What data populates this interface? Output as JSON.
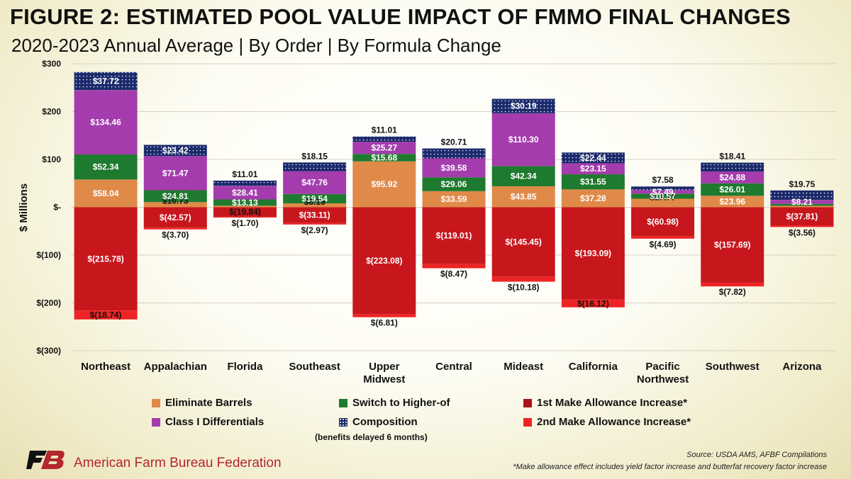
{
  "header": {
    "title": "FIGURE 2: ESTIMATED POOL VALUE IMPACT OF FMMO FINAL CHANGES",
    "subtitle": "2020-2023 Annual Average | By Order | By Formula Change"
  },
  "chart_data": {
    "type": "bar",
    "stacked": true,
    "title": "FIGURE 2: ESTIMATED POOL VALUE IMPACT OF FMMO FINAL CHANGES",
    "subtitle": "2020-2023 Annual Average | By Order | By Formula Change",
    "ylabel": "$ Millions",
    "ylim": [
      -300,
      300
    ],
    "yticks": [
      300,
      200,
      100,
      0,
      -100,
      -200,
      -300
    ],
    "ytick_labels": [
      "$300",
      "$200",
      "$100",
      "$-",
      "$(100)",
      "$(200)",
      "$(300)"
    ],
    "categories": [
      "Northeast",
      "Appalachian",
      "Florida",
      "Southeast",
      "Upper Midwest",
      "Central",
      "Mideast",
      "California",
      "Pacific Northwest",
      "Southwest",
      "Arizona"
    ],
    "category_lines": [
      [
        "Northeast"
      ],
      [
        "Appalachian"
      ],
      [
        "Florida"
      ],
      [
        "Southeast"
      ],
      [
        "Upper",
        "Midwest"
      ],
      [
        "Central"
      ],
      [
        "Mideast"
      ],
      [
        "California"
      ],
      [
        "Pacific",
        "Northwest"
      ],
      [
        "Southwest"
      ],
      [
        "Arizona"
      ]
    ],
    "series": [
      {
        "name": "Eliminate Barrels",
        "key": "barrels",
        "color": "#e08a4a",
        "values": [
          58.04,
          10.73,
          3.16,
          8.19,
          95.92,
          33.59,
          43.85,
          37.28,
          17.77,
          23.96,
          3.1
        ],
        "labels": [
          "$58.04",
          "$10.73",
          "",
          "$8.19",
          "$95.92",
          "$33.59",
          "$43.85",
          "$37.28",
          "$17.77",
          "$23.96",
          ""
        ]
      },
      {
        "name": "Switch to Higher-of",
        "key": "higher",
        "color": "#1e7a2e",
        "values": [
          52.34,
          24.81,
          13.13,
          19.54,
          15.68,
          29.06,
          42.34,
          31.55,
          10.57,
          26.01,
          4.06
        ],
        "labels": [
          "$52.34",
          "$24.81",
          "$13.13",
          "$19.54",
          "$15.68",
          "$29.06",
          "$42.34",
          "$31.55",
          "$10.57",
          "$26.01",
          ""
        ]
      },
      {
        "name": "Class I Differentials",
        "key": "classI",
        "color": "#a43cad",
        "values": [
          134.46,
          71.47,
          28.41,
          47.76,
          25.27,
          39.58,
          110.3,
          23.15,
          7.49,
          24.88,
          8.21
        ],
        "labels": [
          "$134.46",
          "$71.47",
          "$28.41",
          "$47.76",
          "$25.27",
          "$39.58",
          "$110.30",
          "$23.15",
          "$7.49",
          "$24.88",
          "$8.21"
        ]
      },
      {
        "name": "Composition",
        "key": "composition",
        "color": "#1b2a6b",
        "values": [
          37.72,
          23.42,
          11.01,
          18.15,
          11.01,
          20.71,
          30.19,
          22.44,
          7.58,
          18.41,
          19.75
        ],
        "labels": [
          "$37.72",
          "$23.42",
          "$11.01",
          "$18.15",
          "$11.01",
          "$20.71",
          "$30.19",
          "$22.44",
          "$7.58",
          "$18.41",
          "$19.75"
        ]
      },
      {
        "name": "1st Make Allowance Increase*",
        "key": "ma1",
        "color": "#c8161d",
        "values": [
          -215.78,
          -42.57,
          -19.84,
          -33.11,
          -223.08,
          -119.01,
          -145.45,
          -193.09,
          -60.98,
          -157.69,
          -37.81
        ],
        "labels": [
          "$(215.78)",
          "$(42.57)",
          "$(19.84)",
          "$(33.11)",
          "$(223.08)",
          "$(119.01)",
          "$(145.45)",
          "$(193.09)",
          "$(60.98)",
          "$(157.69)",
          "$(37.81)"
        ]
      },
      {
        "name": "2nd Make Allowance Increase*",
        "key": "ma2",
        "color": "#ee2424",
        "values": [
          -18.74,
          -3.7,
          -1.7,
          -2.97,
          -6.81,
          -8.47,
          -10.18,
          -16.12,
          -4.69,
          -7.82,
          -3.56
        ],
        "labels": [
          "$(18.74)",
          "$(3.70)",
          "$(1.70)",
          "$(2.97)",
          "$(6.81)",
          "$(8.47)",
          "$(10.18)",
          "$(16.12)",
          "$(4.69)",
          "$(7.82)",
          "$(3.56)"
        ]
      }
    ],
    "legend_note": "(benefits delayed 6 months)"
  },
  "footer": {
    "org": "American Farm Bureau Federation",
    "source": "Source: USDA AMS, AFBF Compilations",
    "footnote": "*Make allowance effect includes yield factor increase and butterfat recovery factor increase"
  },
  "colors": {
    "title": "#111111",
    "org": "#b3272d"
  }
}
